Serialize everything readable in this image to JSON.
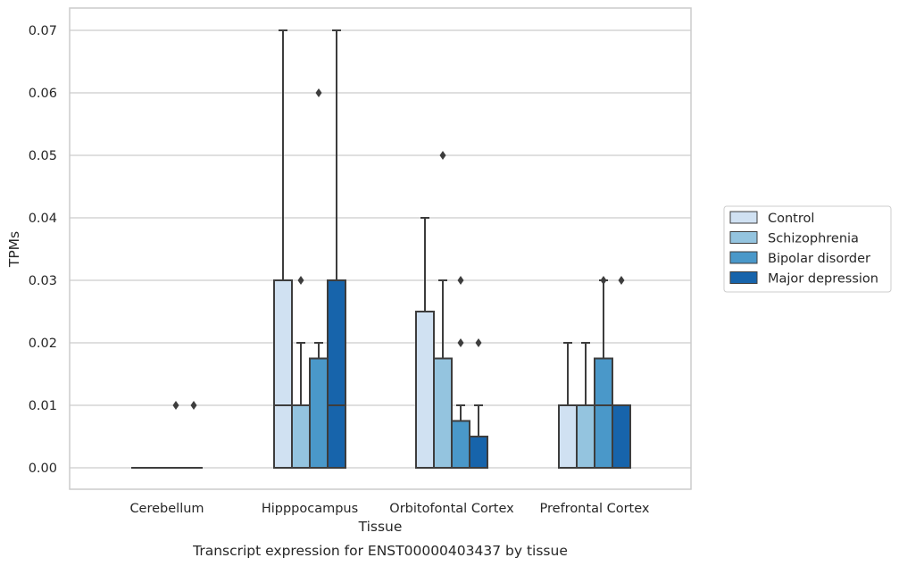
{
  "chart_data": {
    "type": "box",
    "xlabel": "Tissue",
    "ylabel": "TPMs",
    "caption": "Transcript expression for ENST00000403437 by tissue",
    "ylim": [
      -0.0035,
      0.0735
    ],
    "yticks": [
      0.0,
      0.01,
      0.02,
      0.03,
      0.04,
      0.05,
      0.06,
      0.07
    ],
    "ytick_labels": [
      "0.00",
      "0.01",
      "0.02",
      "0.03",
      "0.04",
      "0.05",
      "0.06",
      "0.07"
    ],
    "grid": "horizontal",
    "legend_position": "right",
    "categories": [
      "Cerebellum",
      "Hipppocampus",
      "Orbitofontal Cortex",
      "Prefrontal Cortex"
    ],
    "series": [
      {
        "name": "Control",
        "color": "#d0e1f2",
        "boxes": [
          {
            "q1": 0,
            "median": 0,
            "q3": 0,
            "whislo": 0,
            "whishi": 0,
            "fliers": []
          },
          {
            "q1": 0,
            "median": 0.01,
            "q3": 0.03,
            "whislo": 0,
            "whishi": 0.07,
            "fliers": []
          },
          {
            "q1": 0,
            "median": 0,
            "q3": 0.025,
            "whislo": 0,
            "whishi": 0.04,
            "fliers": []
          },
          {
            "q1": 0,
            "median": 0.01,
            "q3": 0.01,
            "whislo": 0,
            "whishi": 0.02,
            "fliers": []
          }
        ]
      },
      {
        "name": "Schizophrenia",
        "color": "#94c4df",
        "boxes": [
          {
            "q1": 0,
            "median": 0,
            "q3": 0,
            "whislo": 0,
            "whishi": 0,
            "fliers": []
          },
          {
            "q1": 0,
            "median": 0.01,
            "q3": 0.01,
            "whislo": 0,
            "whishi": 0.02,
            "fliers": [
              0.03
            ]
          },
          {
            "q1": 0,
            "median": 0,
            "q3": 0.0175,
            "whislo": 0,
            "whishi": 0.03,
            "fliers": [
              0.05
            ]
          },
          {
            "q1": 0,
            "median": 0.01,
            "q3": 0.01,
            "whislo": 0,
            "whishi": 0.02,
            "fliers": []
          }
        ]
      },
      {
        "name": "Bipolar disorder",
        "color": "#4a98c9",
        "boxes": [
          {
            "q1": 0,
            "median": 0,
            "q3": 0,
            "whislo": 0,
            "whishi": 0,
            "fliers": [
              0.01
            ]
          },
          {
            "q1": 0,
            "median": 0,
            "q3": 0.0175,
            "whislo": 0,
            "whishi": 0.02,
            "fliers": [
              0.06
            ]
          },
          {
            "q1": 0,
            "median": 0,
            "q3": 0.0075,
            "whislo": 0,
            "whishi": 0.01,
            "fliers": [
              0.02,
              0.03
            ]
          },
          {
            "q1": 0,
            "median": 0.01,
            "q3": 0.0175,
            "whislo": 0,
            "whishi": 0.03,
            "fliers": [
              0.03
            ]
          }
        ]
      },
      {
        "name": "Major depression",
        "color": "#1764ab",
        "boxes": [
          {
            "q1": 0,
            "median": 0,
            "q3": 0,
            "whislo": 0,
            "whishi": 0,
            "fliers": [
              0.01
            ]
          },
          {
            "q1": 0,
            "median": 0.01,
            "q3": 0.03,
            "whislo": 0,
            "whishi": 0.07,
            "fliers": []
          },
          {
            "q1": 0,
            "median": 0,
            "q3": 0.005,
            "whislo": 0,
            "whishi": 0.01,
            "fliers": [
              0.02
            ]
          },
          {
            "q1": 0,
            "median": 0.01,
            "q3": 0.01,
            "whislo": 0,
            "whishi": 0.01,
            "fliers": [
              0.03
            ]
          }
        ]
      }
    ],
    "colors": {
      "grid": "#cccccc",
      "frame": "#cccccc",
      "box_edge": "#3d3d3d",
      "text": "#262626"
    }
  }
}
